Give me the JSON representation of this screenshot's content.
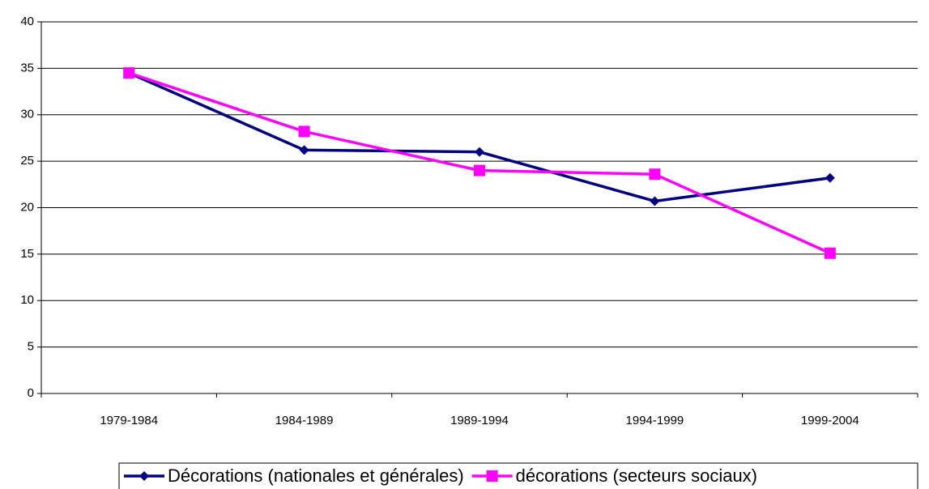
{
  "chart_data": {
    "type": "line",
    "categories": [
      "1979-1984",
      "1984-1989",
      "1989-1994",
      "1994-1999",
      "1999-2004"
    ],
    "series": [
      {
        "name": "Décorations (nationales et générales)",
        "color": "#000080",
        "marker": "diamond",
        "values": [
          34.5,
          26.2,
          26.0,
          20.7,
          23.2
        ]
      },
      {
        "name": "décorations (secteurs sociaux)",
        "color": "#ff00ff",
        "marker": "square",
        "values": [
          34.5,
          28.2,
          24.0,
          23.6,
          15.1
        ]
      }
    ],
    "ylim": [
      0,
      40
    ],
    "yticks": [
      0,
      5,
      10,
      15,
      20,
      25,
      30,
      35,
      40
    ],
    "grid": true,
    "legend": "bottom"
  }
}
